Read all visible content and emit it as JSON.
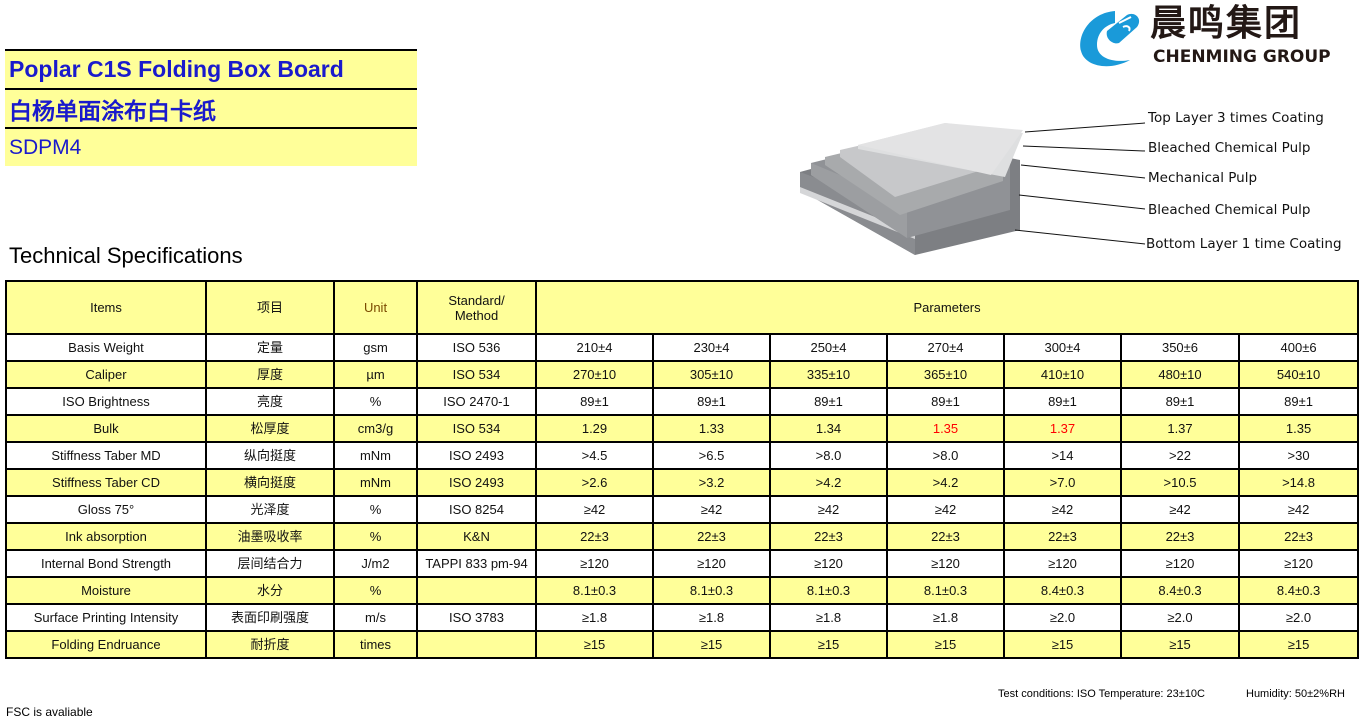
{
  "header": {
    "title_en": "Poplar C1S Folding Box Board",
    "title_cn": "白杨单面涂布白卡纸",
    "code": "SDPM4"
  },
  "logo": {
    "cn": "晨鸣集团",
    "en": "CHENMING GROUP",
    "brand_color": "#1a9ad9"
  },
  "diagram": {
    "layers": [
      "Top Layer 3 times Coating",
      "Bleached Chemical Pulp",
      "Mechanical Pulp",
      "Bleached Chemical Pulp",
      "Bottom Layer 1 time Coating"
    ]
  },
  "section_title": "Technical Specifications",
  "table": {
    "headers": {
      "items": "Items",
      "items_cn": "项目",
      "unit": "Unit",
      "standard": "Standard/\nMethod",
      "standard_l1": "Standard/",
      "standard_l2": "Method",
      "parameters": "Parameters"
    },
    "rows": [
      {
        "item": "Basis Weight",
        "cn": "定量",
        "unit": "gsm",
        "std": "ISO 536",
        "values": [
          "210±4",
          "230±4",
          "250±4",
          "270±4",
          "300±4",
          "350±6",
          "400±6"
        ]
      },
      {
        "item": "Caliper",
        "cn": "厚度",
        "unit": "µm",
        "std": "ISO 534",
        "values": [
          "270±10",
          "305±10",
          "335±10",
          "365±10",
          "410±10",
          "480±10",
          "540±10"
        ]
      },
      {
        "item": "ISO Brightness",
        "cn": "亮度",
        "unit": "%",
        "std": "ISO 2470-1",
        "values": [
          "89±1",
          "89±1",
          "89±1",
          "89±1",
          "89±1",
          "89±1",
          "89±1"
        ]
      },
      {
        "item": "Bulk",
        "cn": "松厚度",
        "unit": "cm3/g",
        "std": "ISO 534",
        "values": [
          "1.29",
          "1.33",
          "1.34",
          "1.35",
          "1.37",
          "1.37",
          "1.35"
        ],
        "highlight": [
          3,
          4
        ],
        "highlight_color": "#ff0000"
      },
      {
        "item": "Stiffness Taber MD",
        "cn": "纵向挺度",
        "unit": "mNm",
        "std": "ISO 2493",
        "values": [
          ">4.5",
          ">6.5",
          ">8.0",
          ">8.0",
          ">14",
          ">22",
          ">30"
        ]
      },
      {
        "item": "Stiffness Taber CD",
        "cn": "横向挺度",
        "unit": "mNm",
        "std": "ISO 2493",
        "values": [
          ">2.6",
          ">3.2",
          ">4.2",
          ">4.2",
          ">7.0",
          ">10.5",
          ">14.8"
        ]
      },
      {
        "item": "Gloss 75°",
        "cn": "光泽度",
        "unit": "%",
        "std": "ISO 8254",
        "values": [
          "≥42",
          "≥42",
          "≥42",
          "≥42",
          "≥42",
          "≥42",
          "≥42"
        ]
      },
      {
        "item": "Ink absorption",
        "cn": "油墨吸收率",
        "unit": "%",
        "std": "K&N",
        "values": [
          "22±3",
          "22±3",
          "22±3",
          "22±3",
          "22±3",
          "22±3",
          "22±3"
        ]
      },
      {
        "item": "Internal Bond Strength",
        "cn": "层间结合力",
        "unit": "J/m2",
        "std": "TAPPI 833 pm-94",
        "values": [
          "≥120",
          "≥120",
          "≥120",
          "≥120",
          "≥120",
          "≥120",
          "≥120"
        ]
      },
      {
        "item": "Moisture",
        "cn": "水分",
        "unit": "%",
        "std": "",
        "values": [
          "8.1±0.3",
          "8.1±0.3",
          "8.1±0.3",
          "8.1±0.3",
          "8.4±0.3",
          "8.4±0.3",
          "8.4±0.3"
        ]
      },
      {
        "item": "Surface Printing Intensity",
        "cn": "表面印刷强度",
        "unit": "m/s",
        "std": "ISO 3783",
        "values": [
          "≥1.8",
          "≥1.8",
          "≥1.8",
          "≥1.8",
          "≥2.0",
          "≥2.0",
          "≥2.0"
        ]
      },
      {
        "item": "Folding Endruance",
        "cn": "耐折度",
        "unit": "times",
        "std": "",
        "values": [
          "≥15",
          "≥15",
          "≥15",
          "≥15",
          "≥15",
          "≥15",
          "≥15"
        ]
      }
    ]
  },
  "footer": {
    "test_conditions": "Test conditions: ISO Temperature: 23±10C",
    "humidity": "Humidity: 50±2%RH",
    "fsc": "FSC is avaliable"
  },
  "colors": {
    "highlight_row": "#ffff99",
    "title_text": "#1a1acc"
  }
}
